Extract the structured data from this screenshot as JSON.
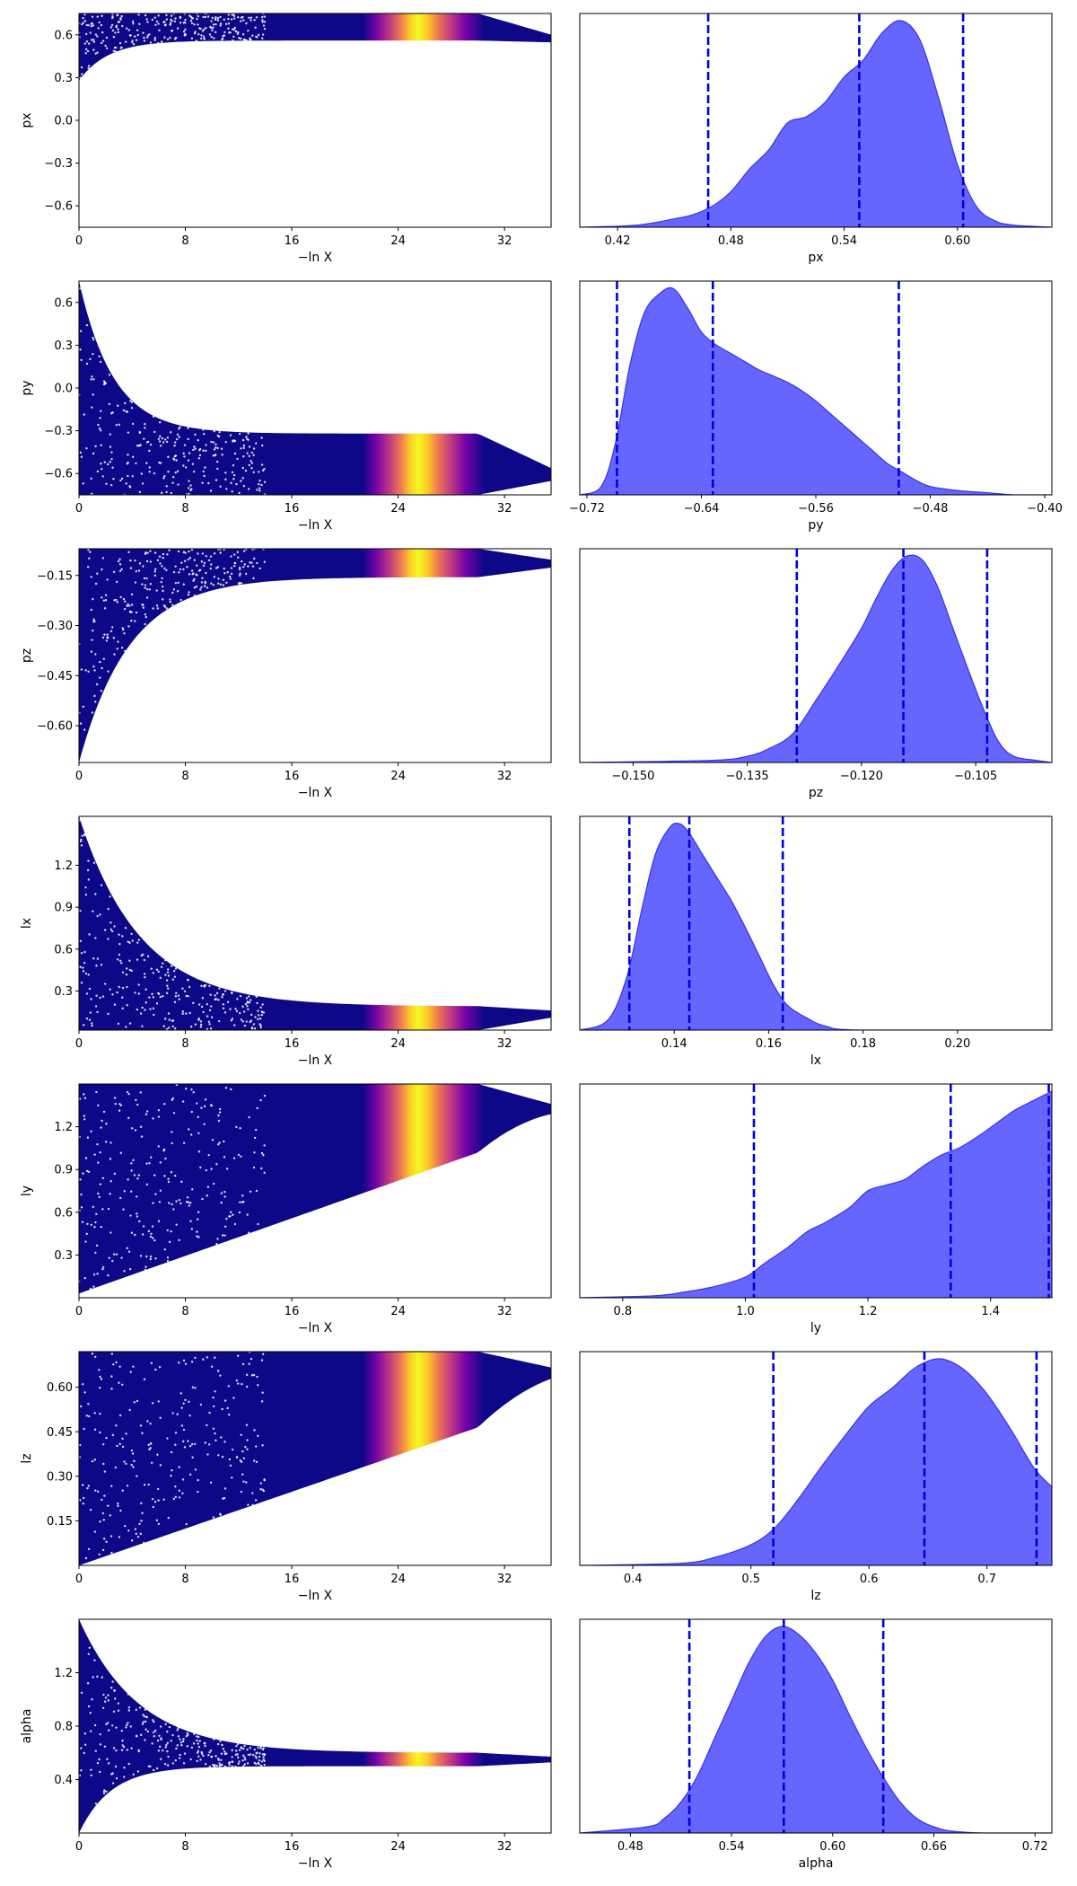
{
  "chart_data": {
    "type": "scatter",
    "colors": {
      "trace_dark": "#0d0887",
      "trace_colormap": [
        "#0d0887",
        "#46039f",
        "#7201a8",
        "#9c179e",
        "#bd3786",
        "#d8576b",
        "#ed7953",
        "#fb9f3a",
        "#fdca26",
        "#f0f921"
      ],
      "kde_fill": "#6666ff",
      "kde_edge": "#3333ee",
      "quantile_line": "#0000dd"
    },
    "x_trace": {
      "label": "−ln X",
      "ticks": [
        "0",
        "8",
        "16",
        "24",
        "32"
      ],
      "tick_values": [
        0,
        8,
        16,
        24,
        32
      ],
      "range": [
        0,
        35.5
      ],
      "posterior_peak": 25.5
    },
    "rows": [
      {
        "name": "px",
        "trace": {
          "ylabel": "px",
          "yticks": [
            "0.6",
            "0.3",
            "0.0",
            "−0.3",
            "−0.6"
          ],
          "ytick_values": [
            0.6,
            0.3,
            0.0,
            -0.3,
            -0.6
          ],
          "yrange": [
            -0.75,
            0.75
          ],
          "converged_value": 0.56,
          "lower_start": 0.28,
          "lower_decay": 2.2,
          "lower_min": -0.75,
          "lower_gap": 0.0,
          "upper_start": 0.75,
          "upper_decay": 1.0
        },
        "hist": {
          "xlabel": "px",
          "xticks": [
            "0.42",
            "0.48",
            "0.54",
            "0.60"
          ],
          "xtick_values": [
            0.42,
            0.48,
            0.54,
            0.6
          ],
          "xrange": [
            0.4,
            0.65
          ],
          "quantiles": [
            0.468,
            0.548,
            0.603
          ],
          "density_x": [
            0.4,
            0.43,
            0.45,
            0.46,
            0.47,
            0.48,
            0.49,
            0.5,
            0.51,
            0.52,
            0.53,
            0.54,
            0.55,
            0.56,
            0.57,
            0.58,
            0.59,
            0.6,
            0.61,
            0.62,
            0.63,
            0.65
          ],
          "density_y": [
            0.0,
            0.01,
            0.04,
            0.06,
            0.1,
            0.17,
            0.28,
            0.37,
            0.5,
            0.53,
            0.6,
            0.72,
            0.8,
            0.93,
            0.99,
            0.9,
            0.62,
            0.3,
            0.1,
            0.03,
            0.01,
            0.0
          ]
        }
      },
      {
        "name": "py",
        "trace": {
          "ylabel": "py",
          "yticks": [
            "0.6",
            "0.3",
            "0.0",
            "−0.3",
            "−0.6"
          ],
          "ytick_values": [
            0.6,
            0.3,
            0.0,
            -0.3,
            -0.6
          ],
          "yrange": [
            -0.75,
            0.75
          ],
          "converged_value": -0.62,
          "lower_start": -0.75,
          "lower_decay": 1.0,
          "upper_start": 0.75,
          "upper_decay": 2.6,
          "upper_min": -0.62,
          "upper_gap": 0.3
        },
        "hist": {
          "xlabel": "py",
          "xticks": [
            "−0.72",
            "−0.64",
            "−0.56",
            "−0.48",
            "−0.40"
          ],
          "xtick_values": [
            -0.72,
            -0.64,
            -0.56,
            -0.48,
            -0.4
          ],
          "xrange": [
            -0.725,
            -0.395
          ],
          "quantiles": [
            -0.699,
            -0.632,
            -0.502
          ],
          "density_x": [
            -0.725,
            -0.71,
            -0.7,
            -0.69,
            -0.68,
            -0.67,
            -0.66,
            -0.65,
            -0.64,
            -0.63,
            -0.62,
            -0.61,
            -0.6,
            -0.59,
            -0.58,
            -0.57,
            -0.56,
            -0.55,
            -0.54,
            -0.53,
            -0.52,
            -0.51,
            -0.5,
            -0.49,
            -0.48,
            -0.46,
            -0.44,
            -0.42,
            -0.395
          ],
          "density_y": [
            0.0,
            0.04,
            0.25,
            0.62,
            0.87,
            0.96,
            0.99,
            0.9,
            0.78,
            0.72,
            0.68,
            0.64,
            0.6,
            0.57,
            0.54,
            0.5,
            0.45,
            0.39,
            0.33,
            0.27,
            0.21,
            0.15,
            0.11,
            0.07,
            0.04,
            0.02,
            0.01,
            0.0,
            0.0
          ]
        }
      },
      {
        "name": "pz",
        "trace": {
          "ylabel": "pz",
          "yticks": [
            "−0.15",
            "−0.30",
            "−0.45",
            "−0.60"
          ],
          "ytick_values": [
            -0.15,
            -0.3,
            -0.45,
            -0.6
          ],
          "yrange": [
            -0.71,
            -0.07
          ],
          "converged_value": -0.115,
          "lower_start": -0.71,
          "lower_decay": 3.8,
          "lower_min": -0.71,
          "lower_gap": 0.04,
          "upper_start": -0.07,
          "upper_decay": 1.0
        },
        "hist": {
          "xlabel": "pz",
          "xticks": [
            "−0.150",
            "−0.135",
            "−0.120",
            "−0.105"
          ],
          "xtick_values": [
            -0.15,
            -0.135,
            -0.12,
            -0.105
          ],
          "xrange": [
            -0.157,
            -0.095
          ],
          "quantiles": [
            -0.1285,
            -0.1145,
            -0.1035
          ],
          "density_x": [
            -0.157,
            -0.14,
            -0.135,
            -0.132,
            -0.129,
            -0.126,
            -0.123,
            -0.12,
            -0.118,
            -0.116,
            -0.114,
            -0.112,
            -0.11,
            -0.108,
            -0.106,
            -0.104,
            -0.102,
            -0.1,
            -0.097,
            -0.095
          ],
          "density_y": [
            0.0,
            0.01,
            0.03,
            0.07,
            0.14,
            0.3,
            0.47,
            0.65,
            0.8,
            0.93,
            1.0,
            0.98,
            0.85,
            0.65,
            0.45,
            0.26,
            0.1,
            0.03,
            0.01,
            0.0
          ]
        }
      },
      {
        "name": "lx",
        "trace": {
          "ylabel": "lx",
          "yticks": [
            "1.2",
            "0.9",
            "0.6",
            "0.3"
          ],
          "ytick_values": [
            1.2,
            0.9,
            0.6,
            0.3
          ],
          "yrange": [
            0.02,
            1.55
          ],
          "converged_value": 0.14,
          "lower_start": 0.02,
          "lower_decay": 1.0,
          "upper_start": 1.55,
          "upper_decay": 4.6,
          "upper_min": 0.14,
          "upper_gap": 0.05
        },
        "hist": {
          "xlabel": "lx",
          "xticks": [
            "0.14",
            "0.16",
            "0.18",
            "0.20"
          ],
          "xtick_values": [
            0.14,
            0.16,
            0.18,
            0.2
          ],
          "xrange": [
            0.12,
            0.22
          ],
          "quantiles": [
            0.1305,
            0.1432,
            0.163
          ],
          "density_x": [
            0.12,
            0.126,
            0.13,
            0.133,
            0.136,
            0.139,
            0.141,
            0.143,
            0.146,
            0.149,
            0.152,
            0.155,
            0.158,
            0.161,
            0.164,
            0.168,
            0.172,
            0.18,
            0.22
          ],
          "density_y": [
            0.0,
            0.05,
            0.26,
            0.57,
            0.85,
            0.98,
            1.0,
            0.96,
            0.85,
            0.74,
            0.63,
            0.5,
            0.36,
            0.22,
            0.12,
            0.06,
            0.02,
            0.0,
            0.0
          ]
        }
      },
      {
        "name": "ly",
        "trace": {
          "ylabel": "ly",
          "yticks": [
            "1.2",
            "0.9",
            "0.6",
            "0.3"
          ],
          "ytick_values": [
            1.2,
            0.9,
            0.6,
            0.3
          ],
          "yrange": [
            0.0,
            1.5
          ],
          "converged_value": 1.32,
          "lower_start": 0.03,
          "lower_decay": 1.0,
          "lower_linear": true,
          "lower_end": 1.2,
          "upper_start": 1.5,
          "upper_decay": 1.0
        },
        "hist": {
          "xlabel": "ly",
          "xticks": [
            "0.8",
            "1.0",
            "1.2",
            "1.4"
          ],
          "xtick_values": [
            0.8,
            1.0,
            1.2,
            1.4
          ],
          "xrange": [
            0.73,
            1.5
          ],
          "quantiles": [
            1.014,
            1.335,
            1.495
          ],
          "density_x": [
            0.73,
            0.85,
            0.9,
            0.95,
            1.0,
            1.03,
            1.07,
            1.1,
            1.13,
            1.17,
            1.2,
            1.23,
            1.26,
            1.29,
            1.32,
            1.35,
            1.38,
            1.41,
            1.44,
            1.47,
            1.5
          ],
          "density_y": [
            0.0,
            0.01,
            0.03,
            0.06,
            0.11,
            0.18,
            0.27,
            0.35,
            0.4,
            0.48,
            0.57,
            0.6,
            0.63,
            0.7,
            0.76,
            0.8,
            0.86,
            0.93,
            1.0,
            1.05,
            1.1
          ]
        }
      },
      {
        "name": "lz",
        "trace": {
          "ylabel": "lz",
          "yticks": [
            "0.60",
            "0.45",
            "0.30",
            "0.15"
          ],
          "ytick_values": [
            0.6,
            0.45,
            0.3,
            0.15
          ],
          "yrange": [
            0.0,
            0.72
          ],
          "converged_value": 0.65,
          "lower_start": 0.0,
          "lower_decay": 1.0,
          "lower_linear": true,
          "lower_end": 0.55,
          "upper_start": 0.72,
          "upper_decay": 1.0
        },
        "hist": {
          "xlabel": "lz",
          "xticks": [
            "0.4",
            "0.5",
            "0.6",
            "0.7"
          ],
          "xtick_values": [
            0.4,
            0.5,
            0.6,
            0.7
          ],
          "xrange": [
            0.355,
            0.755
          ],
          "quantiles": [
            0.519,
            0.647,
            0.742
          ],
          "density_x": [
            0.355,
            0.44,
            0.47,
            0.5,
            0.52,
            0.54,
            0.56,
            0.58,
            0.6,
            0.62,
            0.64,
            0.66,
            0.68,
            0.7,
            0.72,
            0.74,
            0.755
          ],
          "density_y": [
            0.0,
            0.01,
            0.04,
            0.1,
            0.18,
            0.32,
            0.48,
            0.63,
            0.77,
            0.86,
            0.96,
            1.0,
            0.95,
            0.83,
            0.66,
            0.47,
            0.38
          ]
        }
      },
      {
        "name": "alpha",
        "trace": {
          "ylabel": "alpha",
          "yticks": [
            "1.2",
            "0.8",
            "0.4"
          ],
          "ytick_values": [
            1.2,
            0.8,
            0.4
          ],
          "yrange": [
            0.0,
            1.6
          ],
          "converged_value": 0.55,
          "lower_start": 0.0,
          "lower_decay": 2.4,
          "lower_min": 0.0,
          "lower_gap": 0.05,
          "upper_start": 1.6,
          "upper_decay": 4.5,
          "upper_min": 0.55,
          "upper_gap": 0.05
        },
        "hist": {
          "xlabel": "alpha",
          "xticks": [
            "0.48",
            "0.54",
            "0.60",
            "0.66",
            "0.72"
          ],
          "xtick_values": [
            0.48,
            0.54,
            0.6,
            0.66,
            0.72
          ],
          "xrange": [
            0.45,
            0.73
          ],
          "quantiles": [
            0.515,
            0.571,
            0.63
          ],
          "density_x": [
            0.45,
            0.49,
            0.5,
            0.51,
            0.52,
            0.53,
            0.54,
            0.55,
            0.56,
            0.57,
            0.58,
            0.59,
            0.6,
            0.61,
            0.62,
            0.63,
            0.64,
            0.65,
            0.66,
            0.67,
            0.69,
            0.73
          ],
          "density_y": [
            0.0,
            0.03,
            0.07,
            0.15,
            0.28,
            0.46,
            0.64,
            0.82,
            0.95,
            1.0,
            0.96,
            0.87,
            0.74,
            0.57,
            0.41,
            0.27,
            0.15,
            0.07,
            0.03,
            0.01,
            0.0,
            0.0
          ]
        }
      }
    ]
  }
}
